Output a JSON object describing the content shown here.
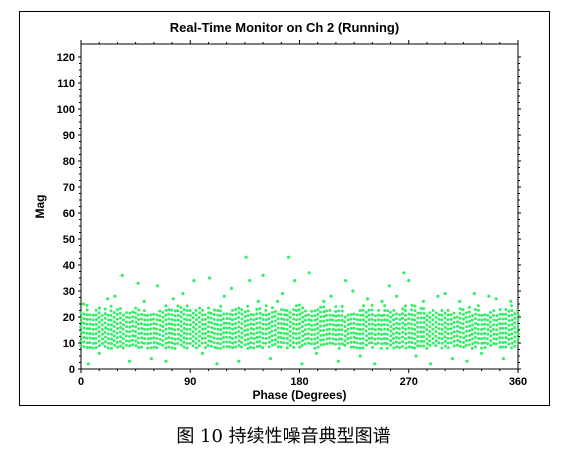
{
  "caption": "图 10  持续性噪音典型图谱",
  "chart_data": {
    "type": "scatter",
    "title": "Real-Time Monitor on Ch 2 (Running)",
    "xlabel": "Phase (Degrees)",
    "ylabel": "Mag",
    "xlim": [
      0,
      360
    ],
    "ylim": [
      0,
      125
    ],
    "xticks": [
      0,
      90,
      180,
      270,
      360
    ],
    "yticks": [
      0,
      10,
      20,
      30,
      40,
      50,
      60,
      70,
      80,
      90,
      100,
      110,
      120
    ],
    "grid": false,
    "marker_color": "#33ee66",
    "band": {
      "x_start": 0,
      "x_end": 360,
      "x_step": 2.5,
      "y_low": 9,
      "y_high": 25,
      "y_step": 1.8
    },
    "outliers": [
      {
        "x": 2,
        "y": 25
      },
      {
        "x": 6,
        "y": 2
      },
      {
        "x": 15,
        "y": 6
      },
      {
        "x": 22,
        "y": 27
      },
      {
        "x": 28,
        "y": 28
      },
      {
        "x": 34,
        "y": 36
      },
      {
        "x": 40,
        "y": 3
      },
      {
        "x": 47,
        "y": 33
      },
      {
        "x": 52,
        "y": 26
      },
      {
        "x": 58,
        "y": 4
      },
      {
        "x": 63,
        "y": 32
      },
      {
        "x": 70,
        "y": 3
      },
      {
        "x": 76,
        "y": 27
      },
      {
        "x": 84,
        "y": 29
      },
      {
        "x": 93,
        "y": 34
      },
      {
        "x": 100,
        "y": 6
      },
      {
        "x": 106,
        "y": 35
      },
      {
        "x": 112,
        "y": 2
      },
      {
        "x": 118,
        "y": 28
      },
      {
        "x": 124,
        "y": 31
      },
      {
        "x": 130,
        "y": 3
      },
      {
        "x": 136,
        "y": 43
      },
      {
        "x": 139,
        "y": 34
      },
      {
        "x": 146,
        "y": 26
      },
      {
        "x": 150,
        "y": 36
      },
      {
        "x": 156,
        "y": 4
      },
      {
        "x": 162,
        "y": 26
      },
      {
        "x": 166,
        "y": 29
      },
      {
        "x": 171,
        "y": 43
      },
      {
        "x": 176,
        "y": 34
      },
      {
        "x": 182,
        "y": 2
      },
      {
        "x": 188,
        "y": 37
      },
      {
        "x": 194,
        "y": 6
      },
      {
        "x": 200,
        "y": 26
      },
      {
        "x": 206,
        "y": 28
      },
      {
        "x": 212,
        "y": 3
      },
      {
        "x": 218,
        "y": 34
      },
      {
        "x": 224,
        "y": 30
      },
      {
        "x": 230,
        "y": 5
      },
      {
        "x": 236,
        "y": 27
      },
      {
        "x": 242,
        "y": 2
      },
      {
        "x": 248,
        "y": 26
      },
      {
        "x": 254,
        "y": 32
      },
      {
        "x": 260,
        "y": 28
      },
      {
        "x": 266,
        "y": 37
      },
      {
        "x": 270,
        "y": 34
      },
      {
        "x": 276,
        "y": 5
      },
      {
        "x": 282,
        "y": 26
      },
      {
        "x": 288,
        "y": 2
      },
      {
        "x": 294,
        "y": 28
      },
      {
        "x": 300,
        "y": 29
      },
      {
        "x": 306,
        "y": 4
      },
      {
        "x": 312,
        "y": 26
      },
      {
        "x": 318,
        "y": 3
      },
      {
        "x": 324,
        "y": 29
      },
      {
        "x": 330,
        "y": 6
      },
      {
        "x": 336,
        "y": 28
      },
      {
        "x": 342,
        "y": 27
      },
      {
        "x": 348,
        "y": 4
      },
      {
        "x": 354,
        "y": 26
      }
    ]
  }
}
